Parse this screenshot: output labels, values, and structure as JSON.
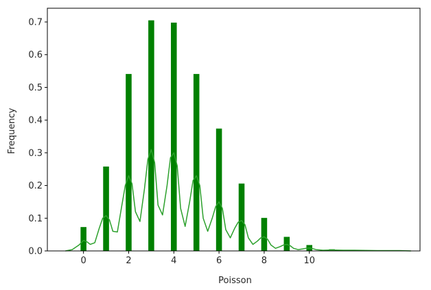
{
  "chart_data": {
    "type": "bar",
    "xlabel": "Poisson",
    "ylabel": "Frequency",
    "xlim": [
      -1.6,
      14.9
    ],
    "ylim": [
      0,
      0.742
    ],
    "xticks": [
      0,
      2,
      4,
      6,
      8,
      10
    ],
    "yticks": [
      0.0,
      0.1,
      0.2,
      0.3,
      0.4,
      0.5,
      0.6,
      0.7
    ],
    "colors": {
      "bars": "#008000",
      "kde": "#2ca02c"
    },
    "bars": {
      "x": [
        0,
        1,
        2,
        3,
        4,
        5,
        6,
        7,
        8,
        9,
        10,
        11
      ],
      "values": [
        0.073,
        0.258,
        0.541,
        0.705,
        0.698,
        0.541,
        0.374,
        0.206,
        0.101,
        0.043,
        0.018,
        0.005
      ]
    },
    "kde": {
      "x": [
        -0.8,
        -0.5,
        -0.2,
        0.0,
        0.15,
        0.3,
        0.5,
        0.7,
        0.85,
        1.0,
        1.15,
        1.3,
        1.5,
        1.7,
        1.85,
        2.0,
        2.15,
        2.3,
        2.5,
        2.7,
        2.85,
        3.0,
        3.15,
        3.3,
        3.5,
        3.7,
        3.85,
        4.0,
        4.15,
        4.3,
        4.5,
        4.7,
        4.85,
        5.0,
        5.15,
        5.3,
        5.5,
        5.7,
        5.85,
        6.0,
        6.15,
        6.3,
        6.5,
        6.7,
        6.85,
        7.0,
        7.15,
        7.3,
        7.5,
        7.7,
        7.85,
        8.0,
        8.15,
        8.3,
        8.5,
        8.7,
        8.85,
        9.0,
        9.15,
        9.3,
        9.5,
        9.7,
        9.85,
        10.0,
        10.15,
        10.3,
        10.6,
        11.0,
        11.5,
        12.0,
        13.0,
        14.0,
        14.5
      ],
      "y": [
        0.0,
        0.004,
        0.018,
        0.032,
        0.028,
        0.02,
        0.025,
        0.07,
        0.1,
        0.108,
        0.095,
        0.06,
        0.058,
        0.14,
        0.2,
        0.23,
        0.205,
        0.12,
        0.09,
        0.19,
        0.28,
        0.31,
        0.27,
        0.14,
        0.11,
        0.2,
        0.285,
        0.3,
        0.26,
        0.13,
        0.075,
        0.15,
        0.215,
        0.23,
        0.2,
        0.1,
        0.06,
        0.1,
        0.135,
        0.15,
        0.13,
        0.065,
        0.04,
        0.07,
        0.088,
        0.093,
        0.08,
        0.04,
        0.02,
        0.03,
        0.04,
        0.043,
        0.036,
        0.018,
        0.008,
        0.013,
        0.018,
        0.02,
        0.016,
        0.008,
        0.004,
        0.006,
        0.008,
        0.009,
        0.007,
        0.004,
        0.002,
        0.003,
        0.002,
        0.002,
        0.001,
        0.001,
        0.0
      ]
    }
  }
}
